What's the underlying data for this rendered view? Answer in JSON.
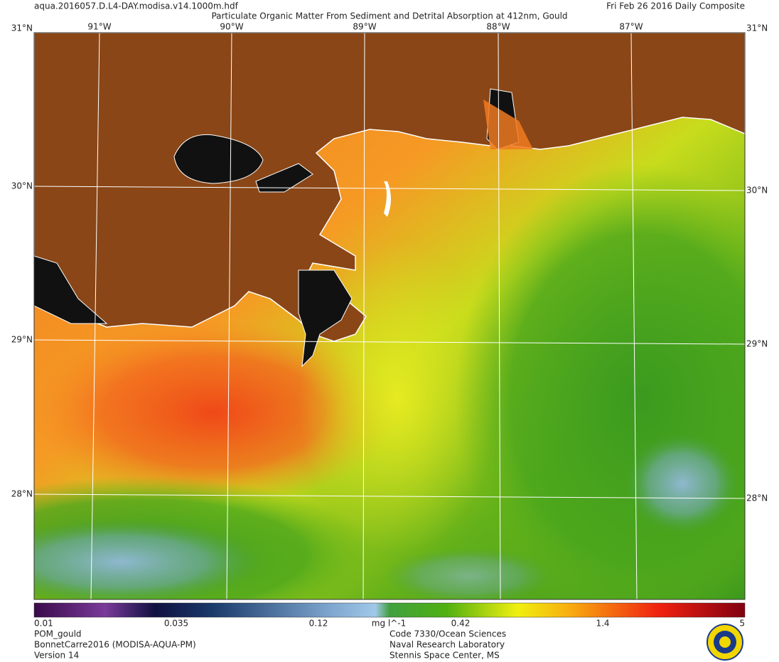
{
  "header": {
    "file": "aqua.2016057.D.L4-DAY.modisa.v14.1000m.hdf",
    "title": "Particulate Organic Matter From Sediment and Detrital Absorption at 412nm, Gould",
    "date": "Fri Feb 26 2016 Daily Composite"
  },
  "map": {
    "longitude_labels": [
      "91°W",
      "90°W",
      "89°W",
      "88°W",
      "87°W"
    ],
    "latitude_labels": [
      "31°N",
      "30°N",
      "29°N",
      "28°N"
    ]
  },
  "colorbar": {
    "labels": [
      "0.01",
      "0.035",
      "0.12",
      "0.42",
      "1.4",
      "5"
    ],
    "units": "mg l^-1"
  },
  "footer": {
    "product": [
      "POM_gould",
      "BonnetCarre2016 (MODISA-AQUA-PM)",
      "Version 14"
    ],
    "credit": [
      "Code 7330/Ocean Sciences",
      "Naval Research Laboratory",
      "Stennis Space Center, MS"
    ]
  }
}
